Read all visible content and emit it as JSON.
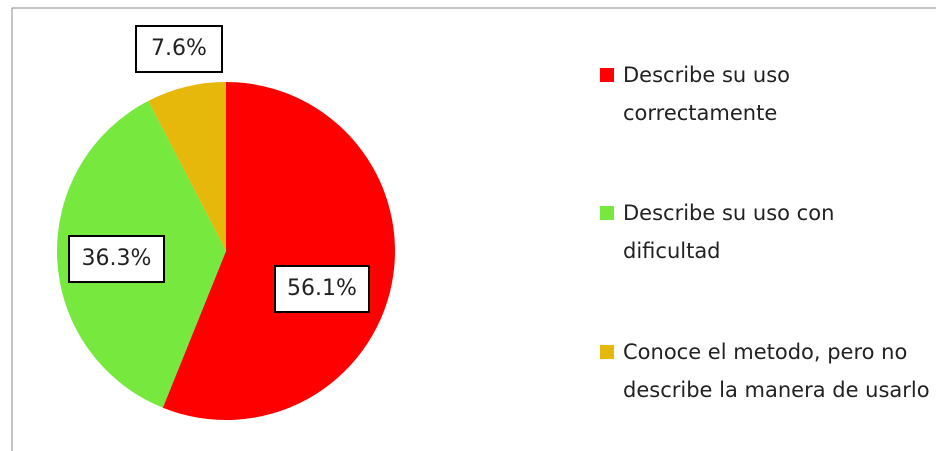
{
  "chart_data": {
    "type": "pie",
    "categories": [
      "Describe su uso correctamente",
      "Describe su uso con dificultad",
      "Conoce el metodo, pero no describe la manera de usarlo"
    ],
    "values": [
      56.1,
      36.3,
      7.6
    ],
    "value_labels": [
      "56.1%",
      "36.3%",
      "7.6%"
    ],
    "colors": [
      "#ff0000",
      "#77e83d",
      "#e6b80c"
    ],
    "legend": "right"
  }
}
